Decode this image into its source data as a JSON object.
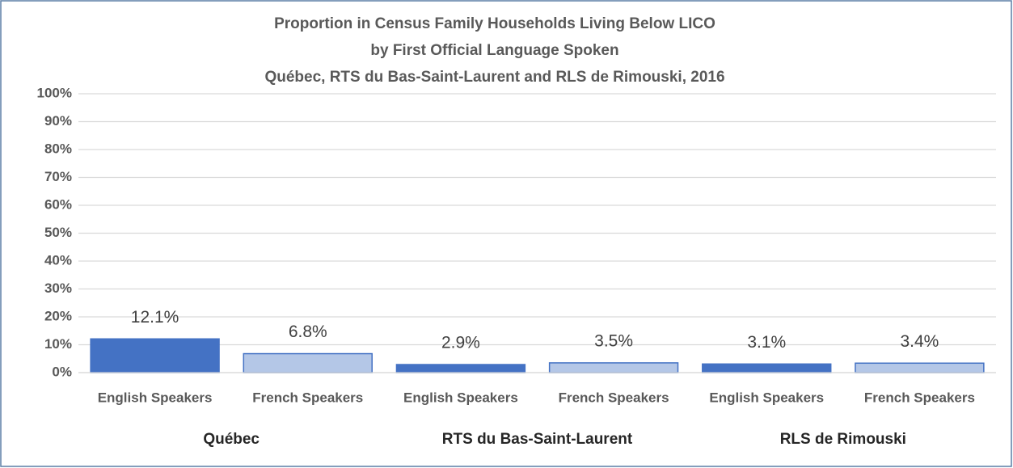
{
  "chart_data": {
    "type": "bar",
    "title": [
      "Proportion in Census Family Households Living Below LICO",
      "by First Official Language Spoken",
      "Québec, RTS du Bas-Saint-Laurent and RLS de Rimouski, 2016"
    ],
    "groups": [
      {
        "name": "Québec",
        "categories": [
          "English Speakers",
          "French Speakers"
        ],
        "values": [
          12.1,
          6.8
        ],
        "value_labels": [
          "12.1%",
          "6.8%"
        ]
      },
      {
        "name": "RTS du Bas-Saint-Laurent",
        "categories": [
          "English Speakers",
          "French Speakers"
        ],
        "values": [
          2.9,
          3.5
        ],
        "value_labels": [
          "2.9%",
          "3.5%"
        ]
      },
      {
        "name": "RLS de Rimouski",
        "categories": [
          "English Speakers",
          "French Speakers"
        ],
        "values": [
          3.1,
          3.4
        ],
        "value_labels": [
          "3.1%",
          "3.4%"
        ]
      }
    ],
    "colors": [
      "#4472c4",
      "#b4c7e7"
    ],
    "ylim": [
      0,
      100
    ],
    "yticks": [
      {
        "value": 0,
        "label": "0%"
      },
      {
        "value": 10,
        "label": "10%"
      },
      {
        "value": 20,
        "label": "20%"
      },
      {
        "value": 30,
        "label": "30%"
      },
      {
        "value": 40,
        "label": "40%"
      },
      {
        "value": 50,
        "label": "50%"
      },
      {
        "value": 60,
        "label": "60%"
      },
      {
        "value": 70,
        "label": "70%"
      },
      {
        "value": 80,
        "label": "80%"
      },
      {
        "value": 90,
        "label": "90%"
      },
      {
        "value": 100,
        "label": "100%"
      }
    ],
    "grid": true
  }
}
